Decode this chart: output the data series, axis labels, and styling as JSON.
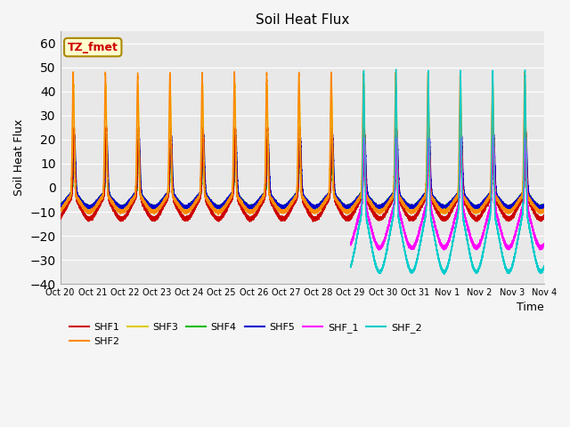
{
  "title": "Soil Heat Flux",
  "xlabel": "Time",
  "ylabel": "Soil Heat Flux",
  "ylim": [
    -40,
    65
  ],
  "yticks": [
    -40,
    -30,
    -20,
    -10,
    0,
    10,
    20,
    30,
    40,
    50,
    60
  ],
  "colors": {
    "SHF1": "#cc0000",
    "SHF2": "#ff8800",
    "SHF3": "#ddcc00",
    "SHF4": "#00bb00",
    "SHF5": "#0000cc",
    "SHF_1": "#ff00ff",
    "SHF_2": "#00cccc"
  },
  "annotation_text": "TZ_fmet",
  "annotation_bg": "#ffffcc",
  "annotation_border": "#aa8800",
  "annotation_text_color": "#cc0000",
  "plot_bg": "#e8e8e8",
  "fig_bg": "#f5f5f5",
  "grid_color": "#ffffff",
  "legend_ncol": 6,
  "legend_fontsize": 8
}
